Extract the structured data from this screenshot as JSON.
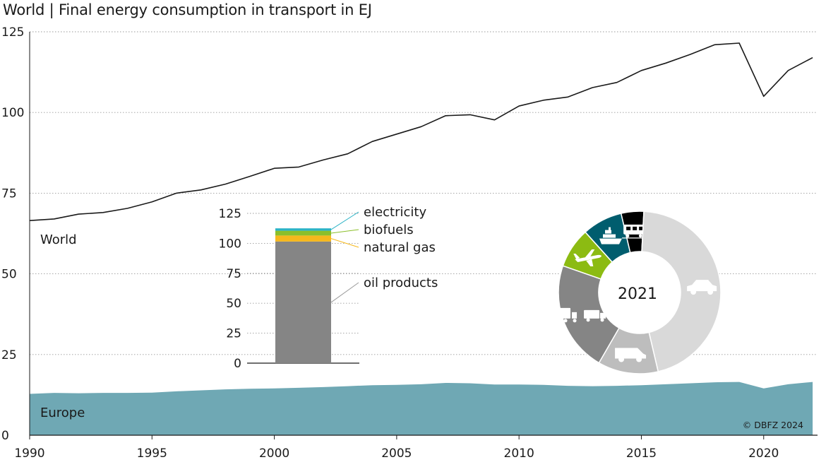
{
  "chart_data": [
    {
      "type": "line",
      "title": "World | Final energy consumption in transport in EJ",
      "x": [
        1990,
        1991,
        1992,
        1993,
        1994,
        1995,
        1996,
        1997,
        1998,
        1999,
        2000,
        2001,
        2002,
        2003,
        2004,
        2005,
        2006,
        2007,
        2008,
        2009,
        2010,
        2011,
        2012,
        2013,
        2014,
        2015,
        2016,
        2017,
        2018,
        2019,
        2020,
        2021,
        2022
      ],
      "series": [
        {
          "name": "World",
          "values": [
            66.5,
            67,
            68.5,
            69,
            70.3,
            72.3,
            75,
            76,
            77.8,
            80.2,
            82.7,
            83.1,
            85.3,
            87.2,
            91,
            93.3,
            95.6,
            99,
            99.3,
            97.7,
            102,
            103.8,
            104.8,
            107.7,
            109.3,
            113,
            115.3,
            118,
            121,
            121.5,
            105,
            113,
            117
          ],
          "color": "#1a1a1a"
        },
        {
          "name": "Europe",
          "values": [
            12.8,
            13.1,
            13,
            13.1,
            13.1,
            13.2,
            13.6,
            13.9,
            14.2,
            14.4,
            14.5,
            14.7,
            14.9,
            15.2,
            15.5,
            15.6,
            15.8,
            16.2,
            16.1,
            15.7,
            15.7,
            15.6,
            15.3,
            15.2,
            15.3,
            15.5,
            15.8,
            16.1,
            16.4,
            16.5,
            14.5,
            15.8,
            16.5
          ],
          "color": "#6fa8b4"
        }
      ],
      "xlim": [
        1990,
        2022.2
      ],
      "ylim": [
        0,
        125
      ],
      "xticks": [
        "1990",
        "1995",
        "2000",
        "2005",
        "2010",
        "2015",
        "2020"
      ],
      "yticks": [
        "0",
        "25",
        "50",
        "75",
        "100",
        "125"
      ],
      "grid": true
    },
    {
      "type": "bar",
      "stacked": true,
      "ylim": [
        0,
        125
      ],
      "yticks": [
        "0",
        "25",
        "50",
        "75",
        "100",
        "125"
      ],
      "series": [
        {
          "name": "oil products",
          "value": 101.5,
          "color": "#858585"
        },
        {
          "name": "natural gas",
          "value": 5.0,
          "color": "#f6b81c"
        },
        {
          "name": "biofuels",
          "value": 4.0,
          "color": "#8bbf2b"
        },
        {
          "name": "electricity",
          "value": 2.0,
          "color": "#2bb3c6"
        }
      ]
    },
    {
      "type": "pie",
      "center_label": "2021",
      "slices": [
        {
          "icon": "truck-icon",
          "value": 22,
          "color": "#858585"
        },
        {
          "icon": "airplane-icon",
          "value": 8,
          "color": "#8cbb12"
        },
        {
          "icon": "ship-icon",
          "value": 8,
          "color": "#005d6e"
        },
        {
          "icon": "train-icon",
          "value": 4.5,
          "color": "#000000"
        },
        {
          "icon": "car-icon",
          "value": 45.5,
          "color": "#d9d9d9"
        },
        {
          "icon": "van-icon",
          "value": 12,
          "color": "#bdbdbd"
        }
      ]
    }
  ],
  "credit": "© DBFZ 2024"
}
